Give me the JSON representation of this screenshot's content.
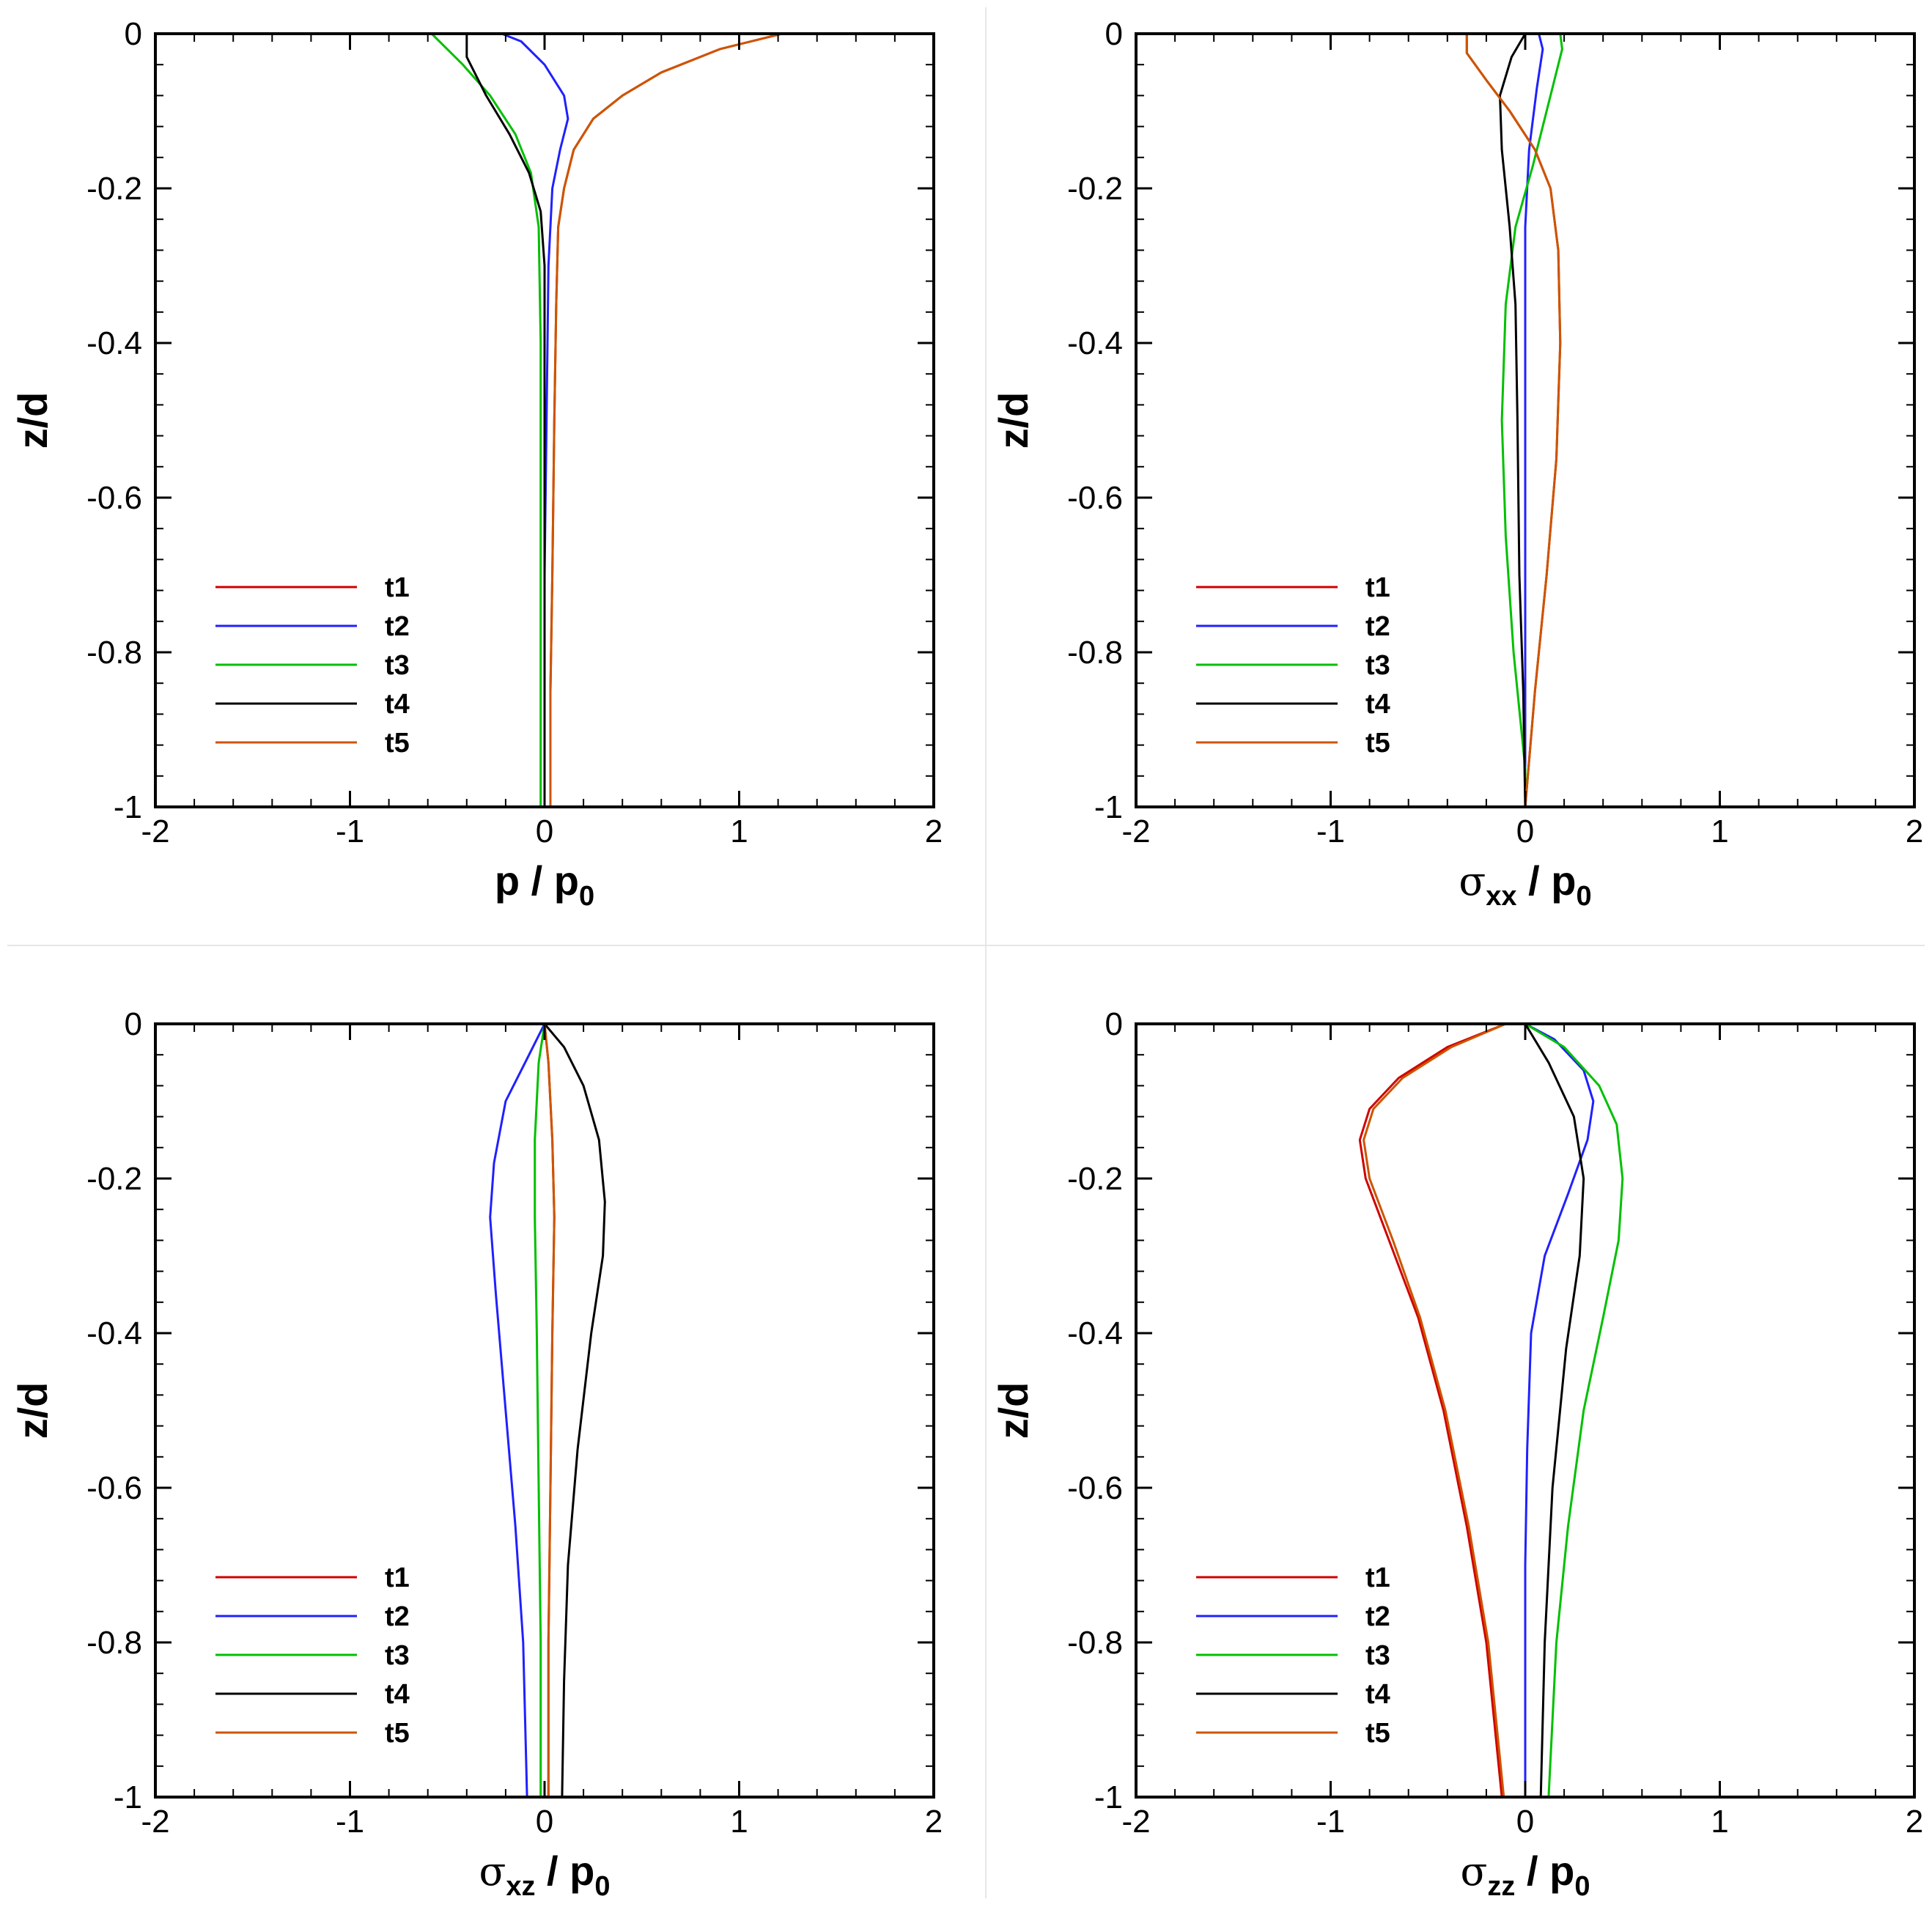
{
  "figure": {
    "panels": [
      {
        "id": "p",
        "xlabel_main": "p / p",
        "xlabel_sub": "0",
        "ylabel": "z/d"
      },
      {
        "id": "sxx",
        "xlabel_sym": "σ",
        "xlabel_sub1": "xx",
        "xlabel_main": " / p",
        "xlabel_sub": "0",
        "ylabel": "z/d"
      },
      {
        "id": "sxz",
        "xlabel_sym": "σ",
        "xlabel_sub1": "xz",
        "xlabel_main": " / p",
        "xlabel_sub": "0",
        "ylabel": "z/d"
      },
      {
        "id": "szz",
        "xlabel_sym": "σ",
        "xlabel_sub1": "zz",
        "xlabel_main": " / p",
        "xlabel_sub": "0",
        "ylabel": "z/d"
      }
    ]
  },
  "chart_data": [
    {
      "type": "line",
      "title": "",
      "xlabel": "p / p0",
      "ylabel": "z/d",
      "xlim": [
        -2,
        2
      ],
      "ylim": [
        -1,
        0
      ],
      "x_ticks": [
        "-2",
        "-1",
        "0",
        "1",
        "2"
      ],
      "y_ticks": [
        "0",
        "-0.2",
        "-0.4",
        "-0.6",
        "-0.8",
        "-1"
      ],
      "legend_position": "bottom-left",
      "series": [
        {
          "name": "t1",
          "color": "#d00000",
          "points": [
            [
              1.22,
              0
            ],
            [
              0.9,
              -0.02
            ],
            [
              0.6,
              -0.05
            ],
            [
              0.4,
              -0.08
            ],
            [
              0.25,
              -0.11
            ],
            [
              0.15,
              -0.15
            ],
            [
              0.1,
              -0.2
            ],
            [
              0.07,
              -0.25
            ],
            [
              0.06,
              -0.35
            ],
            [
              0.05,
              -0.5
            ],
            [
              0.04,
              -0.7
            ],
            [
              0.03,
              -0.85
            ],
            [
              0.03,
              -1
            ]
          ]
        },
        {
          "name": "t2",
          "color": "#2020ff",
          "points": [
            [
              -0.22,
              0
            ],
            [
              -0.12,
              -0.01
            ],
            [
              0.0,
              -0.04
            ],
            [
              0.1,
              -0.08
            ],
            [
              0.12,
              -0.11
            ],
            [
              0.08,
              -0.15
            ],
            [
              0.04,
              -0.2
            ],
            [
              0.02,
              -0.3
            ],
            [
              0.01,
              -0.5
            ],
            [
              0.0,
              -0.7
            ],
            [
              0.0,
              -1
            ]
          ]
        },
        {
          "name": "t3",
          "color": "#00c000",
          "points": [
            [
              -0.58,
              0
            ],
            [
              -0.42,
              -0.04
            ],
            [
              -0.28,
              -0.08
            ],
            [
              -0.15,
              -0.13
            ],
            [
              -0.07,
              -0.18
            ],
            [
              -0.03,
              -0.25
            ],
            [
              -0.02,
              -0.4
            ],
            [
              -0.02,
              -0.6
            ],
            [
              -0.02,
              -0.8
            ],
            [
              -0.02,
              -1
            ]
          ]
        },
        {
          "name": "t4",
          "color": "#000000",
          "points": [
            [
              -0.4,
              0
            ],
            [
              -0.4,
              -0.03
            ],
            [
              -0.3,
              -0.08
            ],
            [
              -0.18,
              -0.13
            ],
            [
              -0.08,
              -0.18
            ],
            [
              -0.02,
              -0.23
            ],
            [
              0.0,
              -0.3
            ],
            [
              0.0,
              -0.5
            ],
            [
              0.0,
              -0.7
            ],
            [
              0.0,
              -1
            ]
          ]
        },
        {
          "name": "t5",
          "color": "#cc5500",
          "points": [
            [
              1.22,
              0
            ],
            [
              0.9,
              -0.02
            ],
            [
              0.6,
              -0.05
            ],
            [
              0.4,
              -0.08
            ],
            [
              0.25,
              -0.11
            ],
            [
              0.15,
              -0.15
            ],
            [
              0.1,
              -0.2
            ],
            [
              0.07,
              -0.25
            ],
            [
              0.06,
              -0.35
            ],
            [
              0.05,
              -0.5
            ],
            [
              0.04,
              -0.7
            ],
            [
              0.03,
              -0.85
            ],
            [
              0.03,
              -1
            ]
          ]
        }
      ]
    },
    {
      "type": "line",
      "title": "",
      "xlabel": "σxx / p0",
      "ylabel": "z/d",
      "xlim": [
        -2,
        2
      ],
      "ylim": [
        -1,
        0
      ],
      "x_ticks": [
        "-2",
        "-1",
        "0",
        "1",
        "2"
      ],
      "y_ticks": [
        "0",
        "-0.2",
        "-0.4",
        "-0.6",
        "-0.8",
        "-1"
      ],
      "legend_position": "bottom-left",
      "series": [
        {
          "name": "t1",
          "color": "#d00000",
          "points": [
            [
              -0.3,
              0
            ],
            [
              -0.3,
              -0.025
            ],
            [
              -0.2,
              -0.06
            ],
            [
              -0.08,
              -0.1
            ],
            [
              0.05,
              -0.15
            ],
            [
              0.13,
              -0.2
            ],
            [
              0.17,
              -0.28
            ],
            [
              0.18,
              -0.4
            ],
            [
              0.16,
              -0.55
            ],
            [
              0.11,
              -0.7
            ],
            [
              0.05,
              -0.85
            ],
            [
              0.0,
              -1
            ]
          ]
        },
        {
          "name": "t2",
          "color": "#2020ff",
          "points": [
            [
              0.07,
              0
            ],
            [
              0.09,
              -0.02
            ],
            [
              0.06,
              -0.07
            ],
            [
              0.02,
              -0.15
            ],
            [
              0.0,
              -0.25
            ],
            [
              0.0,
              -0.5
            ],
            [
              0.0,
              -0.75
            ],
            [
              0.0,
              -1
            ]
          ]
        },
        {
          "name": "t3",
          "color": "#00c000",
          "points": [
            [
              0.18,
              0
            ],
            [
              0.19,
              -0.02
            ],
            [
              0.13,
              -0.08
            ],
            [
              0.04,
              -0.17
            ],
            [
              -0.05,
              -0.25
            ],
            [
              -0.1,
              -0.35
            ],
            [
              -0.12,
              -0.5
            ],
            [
              -0.1,
              -0.65
            ],
            [
              -0.06,
              -0.8
            ],
            [
              0.0,
              -0.95
            ],
            [
              0.0,
              -1
            ]
          ]
        },
        {
          "name": "t4",
          "color": "#000000",
          "points": [
            [
              0.0,
              0
            ],
            [
              -0.07,
              -0.03
            ],
            [
              -0.13,
              -0.08
            ],
            [
              -0.12,
              -0.15
            ],
            [
              -0.08,
              -0.25
            ],
            [
              -0.05,
              -0.35
            ],
            [
              -0.04,
              -0.5
            ],
            [
              -0.03,
              -0.7
            ],
            [
              -0.01,
              -0.85
            ],
            [
              0.0,
              -1
            ]
          ]
        },
        {
          "name": "t5",
          "color": "#cc5500",
          "points": [
            [
              -0.3,
              0
            ],
            [
              -0.3,
              -0.025
            ],
            [
              -0.2,
              -0.06
            ],
            [
              -0.08,
              -0.1
            ],
            [
              0.05,
              -0.15
            ],
            [
              0.13,
              -0.2
            ],
            [
              0.17,
              -0.28
            ],
            [
              0.18,
              -0.4
            ],
            [
              0.16,
              -0.55
            ],
            [
              0.11,
              -0.7
            ],
            [
              0.05,
              -0.85
            ],
            [
              0.0,
              -1
            ]
          ]
        }
      ]
    },
    {
      "type": "line",
      "title": "",
      "xlabel": "σxz / p0",
      "ylabel": "z/d",
      "xlim": [
        -2,
        2
      ],
      "ylim": [
        -1,
        0
      ],
      "x_ticks": [
        "-2",
        "-1",
        "0",
        "1",
        "2"
      ],
      "y_ticks": [
        "0",
        "-0.2",
        "-0.4",
        "-0.6",
        "-0.8",
        "-1"
      ],
      "legend_position": "bottom-left",
      "series": [
        {
          "name": "t1",
          "color": "#d00000",
          "points": [
            [
              0.0,
              0
            ],
            [
              0.02,
              -0.05
            ],
            [
              0.04,
              -0.15
            ],
            [
              0.05,
              -0.25
            ],
            [
              0.04,
              -0.4
            ],
            [
              0.03,
              -0.6
            ],
            [
              0.02,
              -0.8
            ],
            [
              0.02,
              -1
            ]
          ]
        },
        {
          "name": "t2",
          "color": "#2020ff",
          "points": [
            [
              0.0,
              0
            ],
            [
              -0.1,
              -0.05
            ],
            [
              -0.2,
              -0.1
            ],
            [
              -0.26,
              -0.18
            ],
            [
              -0.28,
              -0.25
            ],
            [
              -0.25,
              -0.35
            ],
            [
              -0.2,
              -0.5
            ],
            [
              -0.15,
              -0.65
            ],
            [
              -0.11,
              -0.8
            ],
            [
              -0.09,
              -1
            ]
          ]
        },
        {
          "name": "t3",
          "color": "#00c000",
          "points": [
            [
              0.0,
              0
            ],
            [
              -0.03,
              -0.05
            ],
            [
              -0.05,
              -0.15
            ],
            [
              -0.05,
              -0.25
            ],
            [
              -0.04,
              -0.4
            ],
            [
              -0.03,
              -0.6
            ],
            [
              -0.02,
              -0.8
            ],
            [
              -0.02,
              -1
            ]
          ]
        },
        {
          "name": "t4",
          "color": "#000000",
          "points": [
            [
              0.0,
              0
            ],
            [
              0.1,
              -0.03
            ],
            [
              0.2,
              -0.08
            ],
            [
              0.28,
              -0.15
            ],
            [
              0.31,
              -0.23
            ],
            [
              0.3,
              -0.3
            ],
            [
              0.24,
              -0.4
            ],
            [
              0.17,
              -0.55
            ],
            [
              0.12,
              -0.7
            ],
            [
              0.1,
              -0.85
            ],
            [
              0.09,
              -1
            ]
          ]
        },
        {
          "name": "t5",
          "color": "#cc5500",
          "points": [
            [
              0.0,
              0
            ],
            [
              0.02,
              -0.05
            ],
            [
              0.04,
              -0.15
            ],
            [
              0.05,
              -0.25
            ],
            [
              0.04,
              -0.4
            ],
            [
              0.03,
              -0.6
            ],
            [
              0.02,
              -0.8
            ],
            [
              0.02,
              -1
            ]
          ]
        }
      ]
    },
    {
      "type": "line",
      "title": "",
      "xlabel": "σzz / p0",
      "ylabel": "z/d",
      "xlim": [
        -2,
        2
      ],
      "ylim": [
        -1,
        0
      ],
      "x_ticks": [
        "-2",
        "-1",
        "0",
        "1",
        "2"
      ],
      "y_ticks": [
        "0",
        "-0.2",
        "-0.4",
        "-0.6",
        "-0.8",
        "-1"
      ],
      "legend_position": "bottom-left",
      "series": [
        {
          "name": "t1",
          "color": "#d00000",
          "points": [
            [
              -0.1,
              0
            ],
            [
              -0.4,
              -0.03
            ],
            [
              -0.65,
              -0.07
            ],
            [
              -0.8,
              -0.11
            ],
            [
              -0.85,
              -0.15
            ],
            [
              -0.82,
              -0.2
            ],
            [
              -0.7,
              -0.28
            ],
            [
              -0.55,
              -0.38
            ],
            [
              -0.42,
              -0.5
            ],
            [
              -0.3,
              -0.65
            ],
            [
              -0.2,
              -0.8
            ],
            [
              -0.12,
              -1
            ]
          ]
        },
        {
          "name": "t2",
          "color": "#2020ff",
          "points": [
            [
              0.0,
              0
            ],
            [
              0.15,
              -0.02
            ],
            [
              0.3,
              -0.06
            ],
            [
              0.35,
              -0.1
            ],
            [
              0.32,
              -0.15
            ],
            [
              0.22,
              -0.22
            ],
            [
              0.1,
              -0.3
            ],
            [
              0.03,
              -0.4
            ],
            [
              0.01,
              -0.55
            ],
            [
              0.0,
              -0.7
            ],
            [
              0.0,
              -0.85
            ],
            [
              0.0,
              -1
            ]
          ]
        },
        {
          "name": "t3",
          "color": "#00c000",
          "points": [
            [
              0.0,
              0
            ],
            [
              0.2,
              -0.03
            ],
            [
              0.38,
              -0.08
            ],
            [
              0.47,
              -0.13
            ],
            [
              0.5,
              -0.2
            ],
            [
              0.48,
              -0.28
            ],
            [
              0.4,
              -0.38
            ],
            [
              0.3,
              -0.5
            ],
            [
              0.22,
              -0.65
            ],
            [
              0.16,
              -0.8
            ],
            [
              0.12,
              -1
            ]
          ]
        },
        {
          "name": "t4",
          "color": "#000000",
          "points": [
            [
              0.0,
              0
            ],
            [
              0.12,
              -0.05
            ],
            [
              0.25,
              -0.12
            ],
            [
              0.3,
              -0.2
            ],
            [
              0.28,
              -0.3
            ],
            [
              0.21,
              -0.42
            ],
            [
              0.14,
              -0.6
            ],
            [
              0.1,
              -0.8
            ],
            [
              0.08,
              -1
            ]
          ]
        },
        {
          "name": "t5",
          "color": "#cc5500",
          "points": [
            [
              -0.1,
              0
            ],
            [
              -0.38,
              -0.03
            ],
            [
              -0.63,
              -0.07
            ],
            [
              -0.78,
              -0.11
            ],
            [
              -0.83,
              -0.15
            ],
            [
              -0.8,
              -0.2
            ],
            [
              -0.68,
              -0.28
            ],
            [
              -0.54,
              -0.38
            ],
            [
              -0.41,
              -0.5
            ],
            [
              -0.29,
              -0.65
            ],
            [
              -0.19,
              -0.8
            ],
            [
              -0.11,
              -1
            ]
          ]
        }
      ]
    }
  ]
}
